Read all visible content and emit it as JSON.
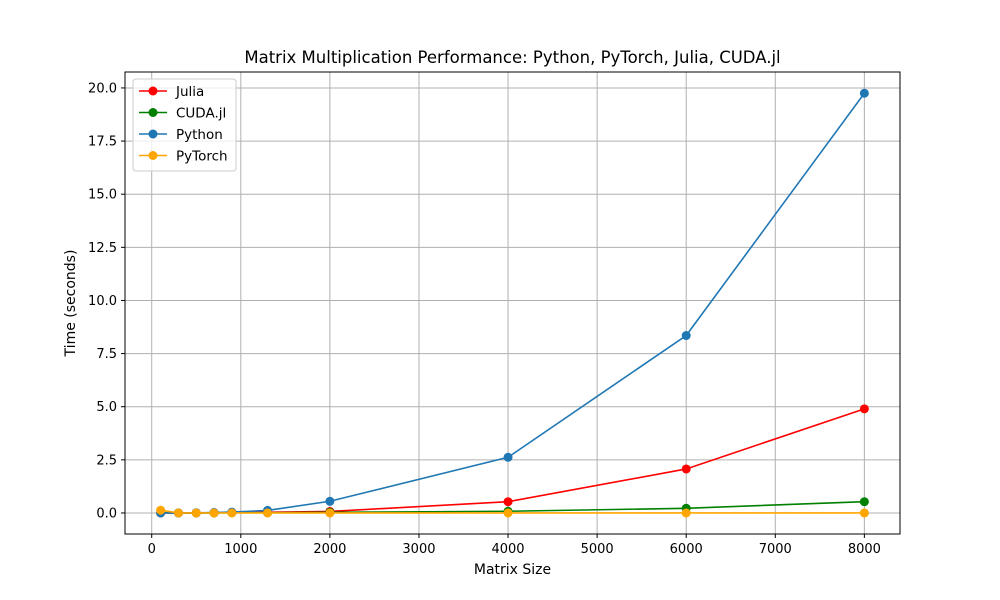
{
  "chart_data": {
    "type": "line",
    "title": "Matrix Multiplication Performance: Python, PyTorch, Julia, CUDA.jl",
    "xlabel": "Matrix Size",
    "ylabel": "Time (seconds)",
    "xlim": [
      -300,
      8400
    ],
    "ylim": [
      -0.99,
      20.75
    ],
    "xticks": [
      0,
      1000,
      2000,
      3000,
      4000,
      5000,
      6000,
      7000,
      8000
    ],
    "yticks": [
      0.0,
      2.5,
      5.0,
      7.5,
      10.0,
      12.5,
      15.0,
      17.5,
      20.0
    ],
    "xtick_labels": [
      "0",
      "1000",
      "2000",
      "3000",
      "4000",
      "5000",
      "6000",
      "7000",
      "8000"
    ],
    "ytick_labels": [
      "0.0",
      "2.5",
      "5.0",
      "7.5",
      "10.0",
      "12.5",
      "15.0",
      "17.5",
      "20.0"
    ],
    "grid": true,
    "legend_position": "top-left",
    "x": [
      100,
      300,
      500,
      700,
      900,
      1300,
      2000,
      4000,
      6000,
      8000
    ],
    "series": [
      {
        "name": "Julia",
        "color": "#ff0000",
        "values": [
          0.0,
          0.0,
          0.0,
          0.01,
          0.02,
          0.03,
          0.07,
          0.53,
          2.07,
          4.9
        ]
      },
      {
        "name": "CUDA.jl",
        "color": "#008000",
        "values": [
          0.01,
          0.0,
          0.0,
          0.0,
          0.01,
          0.01,
          0.03,
          0.08,
          0.22,
          0.53
        ]
      },
      {
        "name": "Python",
        "color": "#1f77b4",
        "values": [
          0.0,
          0.0,
          0.01,
          0.02,
          0.04,
          0.12,
          0.55,
          2.62,
          8.35,
          19.75
        ]
      },
      {
        "name": "PyTorch",
        "color": "#ffa500",
        "values": [
          0.13,
          0.0,
          0.0,
          0.0,
          0.0,
          0.0,
          0.0,
          0.0,
          0.0,
          0.0
        ]
      }
    ]
  }
}
